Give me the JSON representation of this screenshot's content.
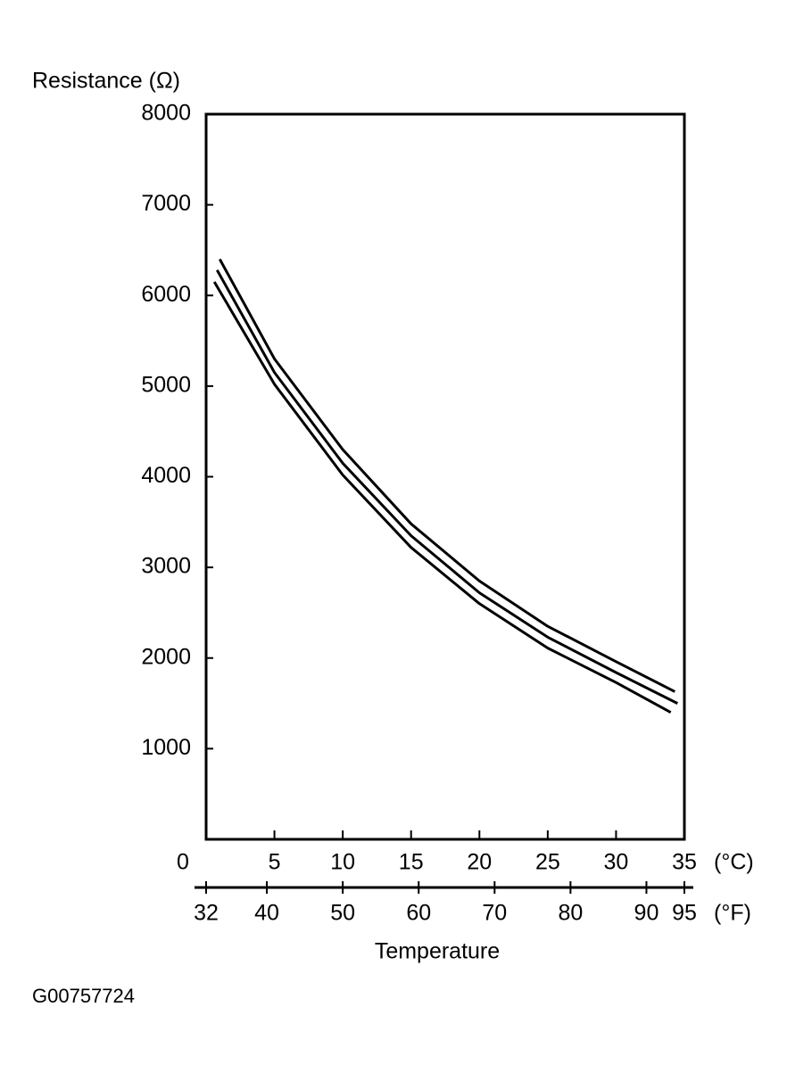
{
  "chart_data": {
    "type": "line",
    "y_label": "Resistance (Ω)",
    "x_label": "Temperature",
    "x_unit": "(°C)",
    "x2_unit": "(°F)",
    "figure_id": "G00757724",
    "xlim": [
      0,
      35
    ],
    "xticks": [
      0,
      5,
      10,
      15,
      20,
      25,
      30,
      35
    ],
    "x2lim": [
      32,
      95
    ],
    "x2ticks": [
      32,
      40,
      50,
      60,
      70,
      80,
      90,
      95
    ],
    "ylim": [
      0,
      8000
    ],
    "yticks": [
      1000,
      2000,
      3000,
      4000,
      5000,
      6000,
      7000,
      8000
    ],
    "series": [
      {
        "color": "#000000",
        "x": [
          1,
          5,
          10,
          15,
          20,
          25,
          30,
          34.3
        ],
        "values": [
          6400,
          5300,
          4300,
          3480,
          2850,
          2350,
          1960,
          1630
        ]
      },
      {
        "color": "#000000",
        "x": [
          0.8,
          5,
          10,
          15,
          20,
          25,
          30,
          34.5
        ],
        "values": [
          6280,
          5150,
          4150,
          3350,
          2720,
          2230,
          1840,
          1500
        ]
      },
      {
        "color": "#000000",
        "x": [
          0.6,
          5,
          10,
          15,
          20,
          25,
          30,
          34
        ],
        "values": [
          6150,
          5020,
          4020,
          3220,
          2600,
          2110,
          1730,
          1400
        ]
      }
    ]
  }
}
